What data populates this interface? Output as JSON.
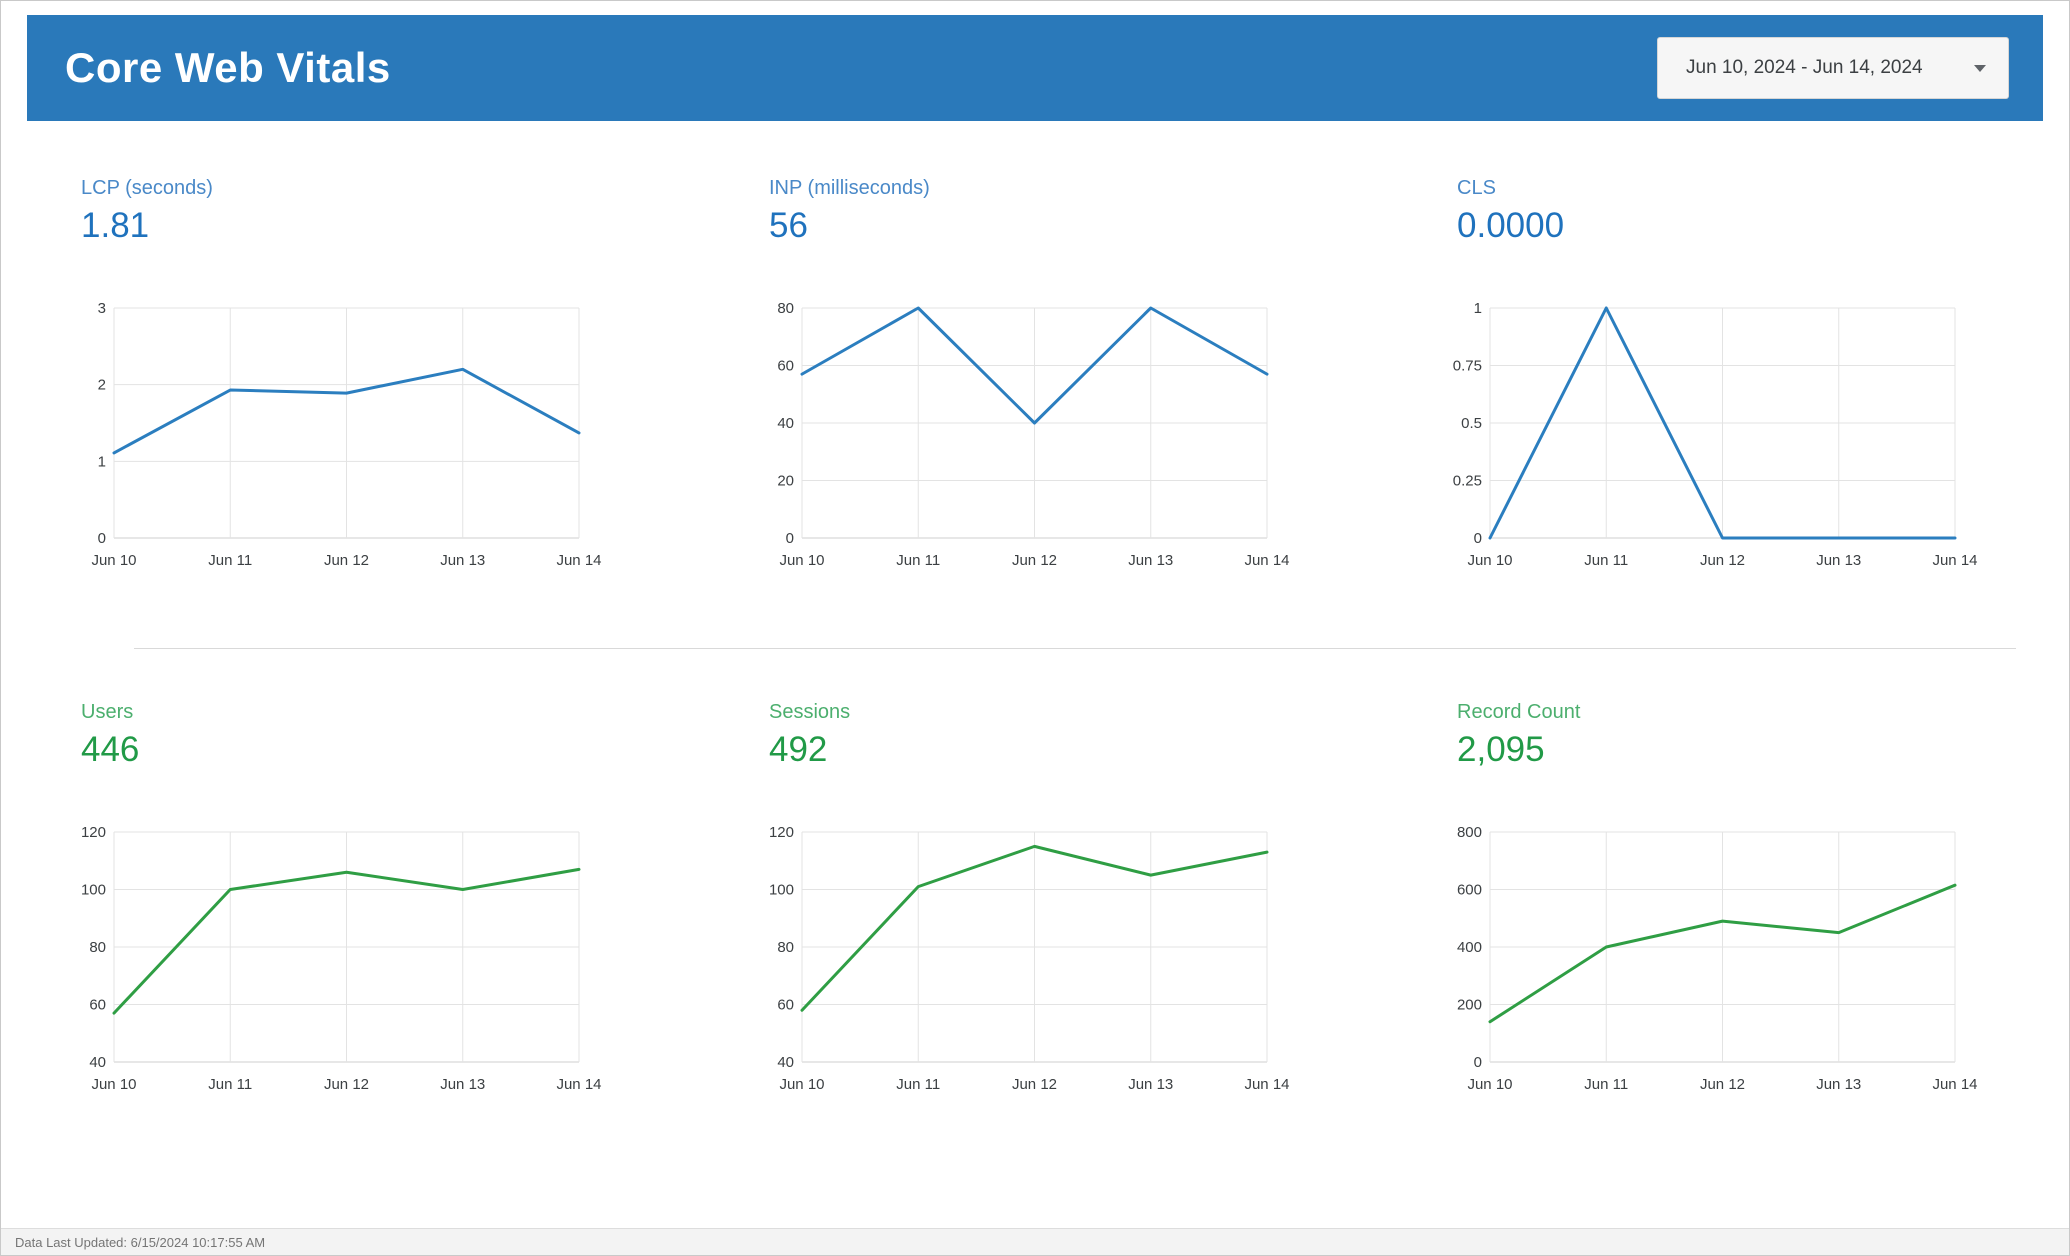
{
  "header": {
    "title": "Core Web Vitals",
    "date_range_label": "Jun 10, 2024 - Jun 14, 2024"
  },
  "footer": {
    "last_updated": "Data Last Updated: 6/15/2024 10:17:55 AM"
  },
  "colors": {
    "header_bg": "#2a79ba",
    "blue_line": "#2b7ebf",
    "green_line": "#2f9e44",
    "grid": "#e3e3e3",
    "axis_line": "#cfcfcf",
    "axis_text": "#3c4043"
  },
  "chart_data": [
    {
      "type": "line",
      "label": "LCP (seconds)",
      "value": "1.81",
      "theme": "blue",
      "categories": [
        "Jun 10",
        "Jun 11",
        "Jun 12",
        "Jun 13",
        "Jun 14"
      ],
      "values": [
        1.11,
        1.93,
        1.89,
        2.2,
        1.37
      ],
      "ylim": [
        0,
        3
      ],
      "yticks": [
        0,
        1,
        2,
        3
      ],
      "grid": true,
      "legend": "none"
    },
    {
      "type": "line",
      "label": "INP (milliseconds)",
      "value": "56",
      "theme": "blue",
      "categories": [
        "Jun 10",
        "Jun 11",
        "Jun 12",
        "Jun 13",
        "Jun 14"
      ],
      "values": [
        57,
        80,
        40,
        80,
        57
      ],
      "ylim": [
        0,
        80
      ],
      "yticks": [
        0,
        20,
        40,
        60,
        80
      ],
      "grid": true,
      "legend": "none"
    },
    {
      "type": "line",
      "label": "CLS",
      "value": "0.0000",
      "theme": "blue",
      "categories": [
        "Jun 10",
        "Jun 11",
        "Jun 12",
        "Jun 13",
        "Jun 14"
      ],
      "values": [
        0,
        1,
        0,
        0,
        0
      ],
      "ylim": [
        0,
        1
      ],
      "yticks": [
        0,
        0.25,
        0.5,
        0.75,
        1
      ],
      "grid": true,
      "legend": "none"
    },
    {
      "type": "line",
      "label": "Users",
      "value": "446",
      "theme": "green",
      "categories": [
        "Jun 10",
        "Jun 11",
        "Jun 12",
        "Jun 13",
        "Jun 14"
      ],
      "values": [
        57,
        100,
        106,
        100,
        107
      ],
      "ylim": [
        40,
        120
      ],
      "yticks": [
        40,
        60,
        80,
        100,
        120
      ],
      "grid": true,
      "legend": "none"
    },
    {
      "type": "line",
      "label": "Sessions",
      "value": "492",
      "theme": "green",
      "categories": [
        "Jun 10",
        "Jun 11",
        "Jun 12",
        "Jun 13",
        "Jun 14"
      ],
      "values": [
        58,
        101,
        115,
        105,
        113
      ],
      "ylim": [
        40,
        120
      ],
      "yticks": [
        40,
        60,
        80,
        100,
        120
      ],
      "grid": true,
      "legend": "none"
    },
    {
      "type": "line",
      "label": "Record Count",
      "value": "2,095",
      "theme": "green",
      "categories": [
        "Jun 10",
        "Jun 11",
        "Jun 12",
        "Jun 13",
        "Jun 14"
      ],
      "values": [
        140,
        400,
        490,
        450,
        615
      ],
      "ylim": [
        0,
        800
      ],
      "yticks": [
        0,
        200,
        400,
        600,
        800
      ],
      "grid": true,
      "legend": "none"
    }
  ]
}
